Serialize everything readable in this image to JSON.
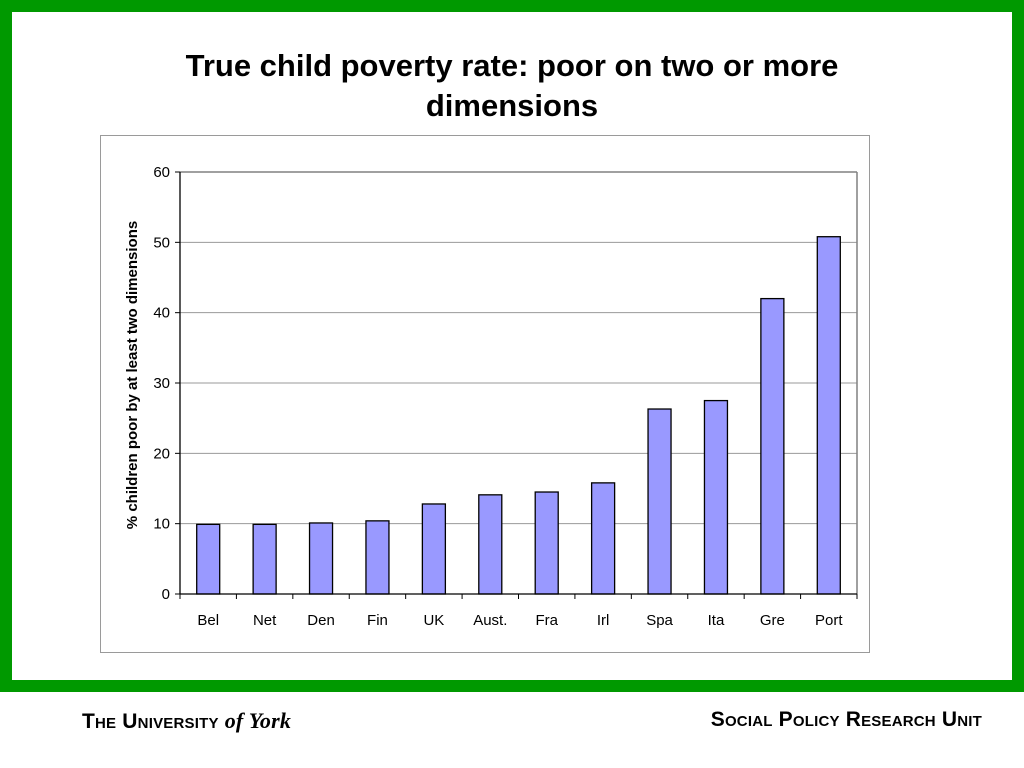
{
  "slide": {
    "title": "True child poverty rate: poor on two or more dimensions",
    "frame_color": "#009900"
  },
  "footer": {
    "left_prefix": "The University",
    "left_suffix": "of York",
    "right": "Social Policy Research Unit"
  },
  "chart_data": {
    "type": "bar",
    "title": "",
    "xlabel": "",
    "ylabel": "% children poor by at least two dimensions",
    "categories": [
      "Bel",
      "Net",
      "Den",
      "Fin",
      "UK",
      "Aust.",
      "Fra",
      "Irl",
      "Spa",
      "Ita",
      "Gre",
      "Port"
    ],
    "values": [
      9.9,
      9.9,
      10.1,
      10.4,
      12.8,
      14.1,
      14.5,
      15.8,
      26.3,
      27.5,
      42.0,
      50.8
    ],
    "ylim": [
      0,
      60
    ],
    "yticks": [
      0,
      10,
      20,
      30,
      40,
      50,
      60
    ],
    "grid": true,
    "legend": "none",
    "bar_color": "#9999ff",
    "bar_edge_color": "#000000"
  }
}
